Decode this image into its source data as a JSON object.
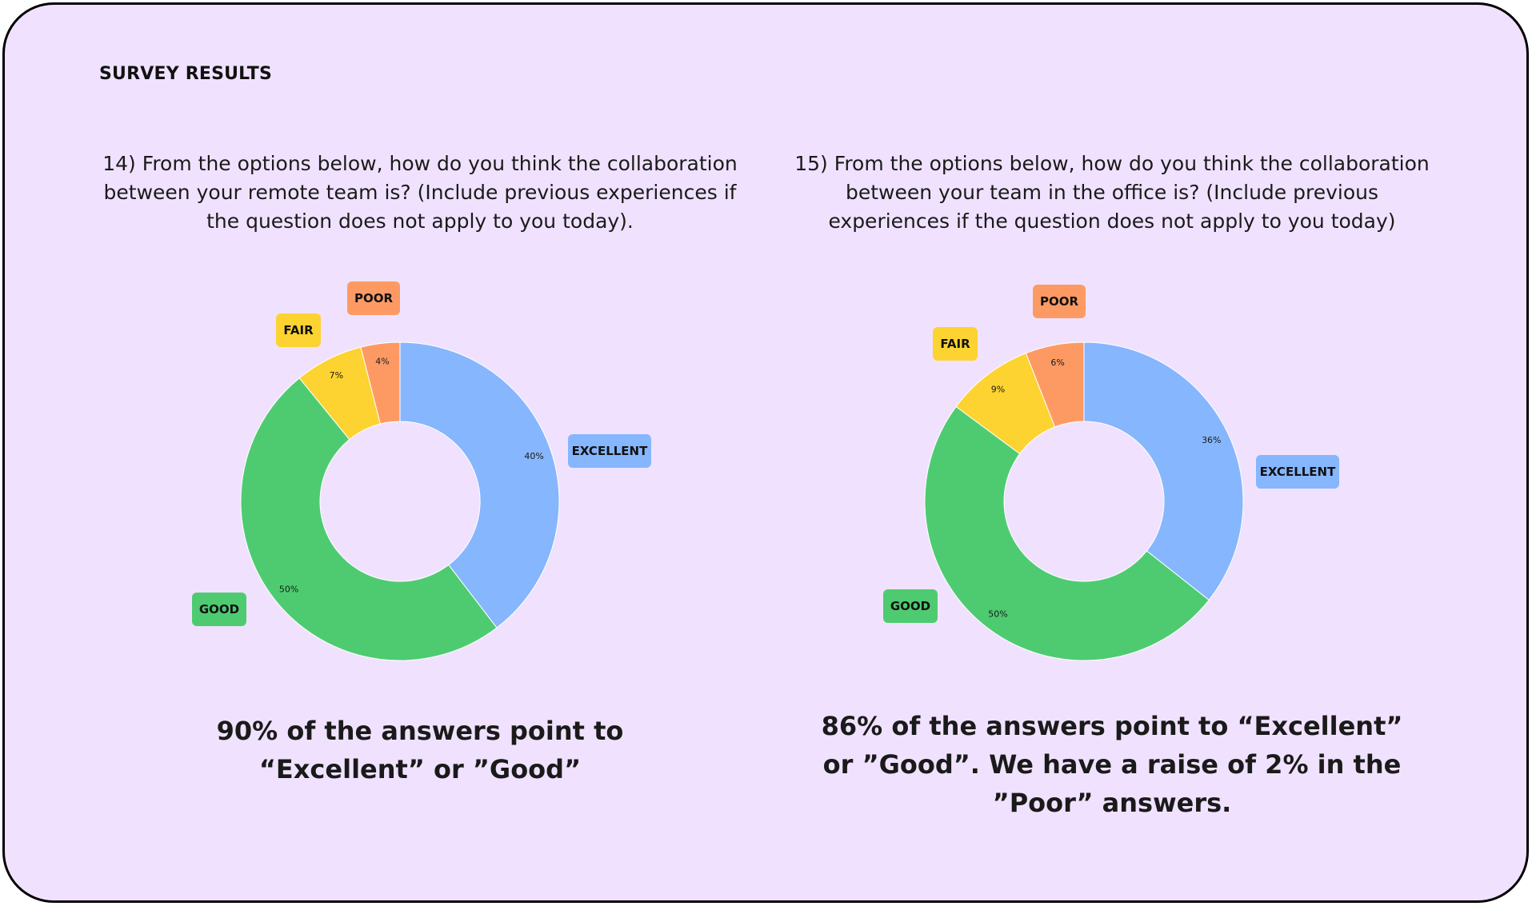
{
  "header": {
    "title": "SURVEY RESULTS"
  },
  "charts": [
    {
      "question": "14) From the options below, how do you think the collaboration between your remote team is? (Include previous experiences if the question does not apply to you today).",
      "summary": "90% of the answers point to “Excellent” or ”Good”"
    },
    {
      "question": "15) From the options below, how do you think the collaboration between your team in the office is? (Include previous experiences if the question does not apply to you today)",
      "summary": "86% of the answers point to “Excellent” or ”Good”. We have a raise of 2% in the ”Poor” answers."
    }
  ],
  "chart_data": [
    {
      "type": "pie",
      "categories": [
        "EXCELLENT",
        "GOOD",
        "FAIR",
        "POOR"
      ],
      "values": [
        40,
        50,
        7,
        4
      ],
      "value_labels": [
        "40%",
        "50%",
        "7%",
        "4%"
      ],
      "colors": [
        "#86b6fd",
        "#4ecb71",
        "#fcd330",
        "#fd9a64"
      ],
      "donut": true,
      "legend": "labels beside slices"
    },
    {
      "type": "pie",
      "categories": [
        "EXCELLENT",
        "GOOD",
        "FAIR",
        "POOR"
      ],
      "values": [
        36,
        50,
        9,
        6
      ],
      "value_labels": [
        "36%",
        "50%",
        "9%",
        "6%"
      ],
      "colors": [
        "#86b6fd",
        "#4ecb71",
        "#fcd330",
        "#fd9a64"
      ],
      "donut": true,
      "legend": "labels beside slices"
    }
  ]
}
